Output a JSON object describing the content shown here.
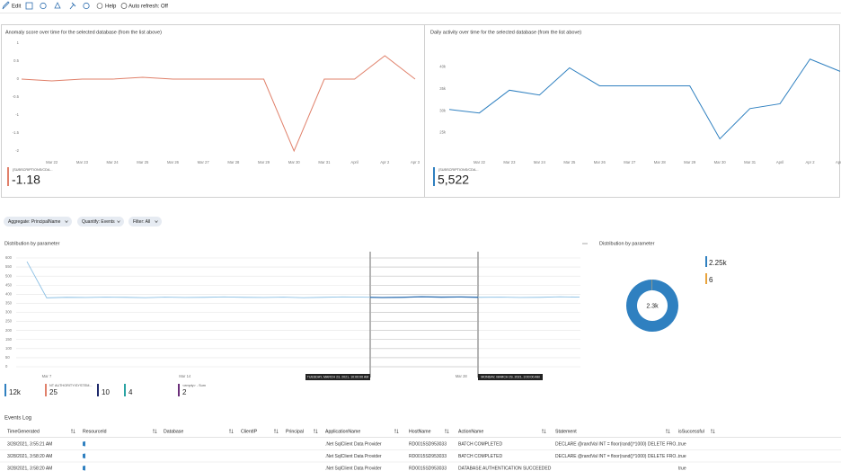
{
  "toolbar": {
    "edit": "Edit",
    "help": "Help",
    "auto_refresh": "Auto refresh: Off"
  },
  "chart_data": [
    {
      "type": "line",
      "title": "Anomaly score over time for the selected database (from the list above)",
      "categories": [
        null,
        "Mar 22",
        "Mar 23",
        "Mar 24",
        "Mar 25",
        "Mar 26",
        "Mar 27",
        "Mar 28",
        "Mar 29",
        "Mar 30",
        "Mar 31",
        "April",
        "Apr 2",
        "Apr 3"
      ],
      "series": [
        {
          "color": "#e0806a",
          "values": [
            0,
            -0.05,
            0,
            0,
            0.05,
            0,
            0,
            0,
            0,
            -2,
            0,
            0,
            0.65,
            0
          ]
        }
      ],
      "ylim": [
        -2.1,
        1.1
      ],
      "yticks": [
        1,
        0.5,
        0,
        -0.5,
        -1,
        -1.5,
        -2
      ],
      "summary": {
        "label": "{SUBSCRIPTIONS/CDA...",
        "value": -1.18
      }
    },
    {
      "type": "line",
      "title": "Daily activity over time for the selected database (from the list above)",
      "categories": [
        null,
        "Mar 22",
        "Mar 23",
        "Mar 24",
        "Mar 25",
        "Mar 26",
        "Mar 27",
        "Mar 28",
        "Mar 29",
        "Mar 30",
        "Mar 31",
        "April",
        "Apr 2",
        "Apr 3"
      ],
      "series": [
        {
          "color": "#2f80c0",
          "values": [
            30300,
            29500,
            34700,
            33600,
            39800,
            35700,
            35700,
            35700,
            35700,
            23600,
            30500,
            31600,
            41800,
            39000
          ]
        }
      ],
      "ylim": [
        20000,
        44000
      ],
      "yticks": [
        {
          "value": 40000,
          "label": "40k"
        },
        {
          "value": 35000,
          "label": "35k"
        },
        {
          "value": 30000,
          "label": "30k"
        },
        {
          "value": 25000,
          "label": "25k"
        }
      ],
      "summary": {
        "label": "{SUBSCRIPTIONS/CDA...",
        "value": 5522,
        "value_label": "5,522"
      }
    },
    {
      "type": "line",
      "title": "Distribution by parameter",
      "categories": [
        null,
        "Mar 7",
        null,
        null,
        null,
        null,
        null,
        null,
        "Mar 14",
        null,
        null,
        null,
        null,
        null,
        null,
        null,
        null,
        null,
        null,
        null,
        null,
        null,
        "Mar 28",
        null,
        null,
        null,
        null,
        null,
        null
      ],
      "series": [
        {
          "color": "#8cc0e4",
          "highlight_color": "#2f6fb0",
          "values": [
            580,
            380,
            383,
            382,
            384,
            383,
            381,
            384,
            382,
            383,
            385,
            383,
            382,
            384,
            381,
            383,
            385,
            384,
            382,
            383,
            386,
            384,
            385,
            383,
            384,
            382,
            383,
            386,
            384
          ]
        }
      ],
      "ylim": [
        0,
        600
      ],
      "yticks": [
        600,
        550,
        500,
        450,
        400,
        350,
        300,
        250,
        200,
        150,
        100,
        50,
        0
      ],
      "grid": true,
      "selection": {
        "start": "TUESDAY, MARCH 23, 2021, 10:00:00 AM",
        "end": "MONDAY, MARCH 29, 2021, 3:00:00 AM"
      },
      "legend": [
        {
          "value": 12000,
          "value_label": "12k",
          "color": "#2f80c0"
        },
        {
          "name": "NT AUTHORITY\\SYSTEM...",
          "value": 25,
          "color": "#e0806a"
        },
        {
          "value": 10,
          "color": "#1f2a6b"
        },
        {
          "value": 4,
          "color": "#2aa3a3"
        },
        {
          "name": "<empty> - Sum",
          "value": 2,
          "color": "#6b2f7a"
        }
      ]
    },
    {
      "type": "pie",
      "title": "Distribution by parameter",
      "total": 2300,
      "total_label": "2.3k",
      "series": [
        {
          "color": "#2f80c0",
          "value": 2250,
          "value_label": "2.25k"
        },
        {
          "color": "#e8a33c",
          "value": 6
        }
      ]
    }
  ],
  "filters": [
    "Aggregate: PrincipalName",
    "Quantify: Events",
    "Filter: All"
  ],
  "events_log": {
    "title": "Events Log",
    "columns": [
      "TimeGenerated",
      "ResourceId",
      "Database",
      "ClientIP",
      "Principal",
      "ApplicationName",
      "HostName",
      "ActionName",
      "Statement",
      "isSuccessful"
    ],
    "rows": [
      {
        "TimeGenerated": "3/28/2021, 3:55:21 AM",
        "ApplicationName": ".Net SqlClient Data Provider",
        "HostName": "RD0015SD953033",
        "ActionName": "BATCH COMPLETED",
        "Statement": "DECLARE @randVal INT = floor(rand()*1000) DELETE FRO...",
        "isSuccessful": "true"
      },
      {
        "TimeGenerated": "3/28/2021, 3:58:20 AM",
        "ApplicationName": ".Net SqlClient Data Provider",
        "HostName": "RD0015SD953033",
        "ActionName": "BATCH COMPLETED",
        "Statement": "DECLARE @randVal INT = floor(rand()*1000) DELETE FRO...",
        "isSuccessful": "true"
      },
      {
        "TimeGenerated": "3/28/2021, 3:58:20 AM",
        "ApplicationName": ".Net SqlClient Data Provider",
        "HostName": "RD0015SD953033",
        "ActionName": "DATABASE AUTHENTICATION SUCCEEDED",
        "isSuccessful": "true"
      }
    ]
  }
}
